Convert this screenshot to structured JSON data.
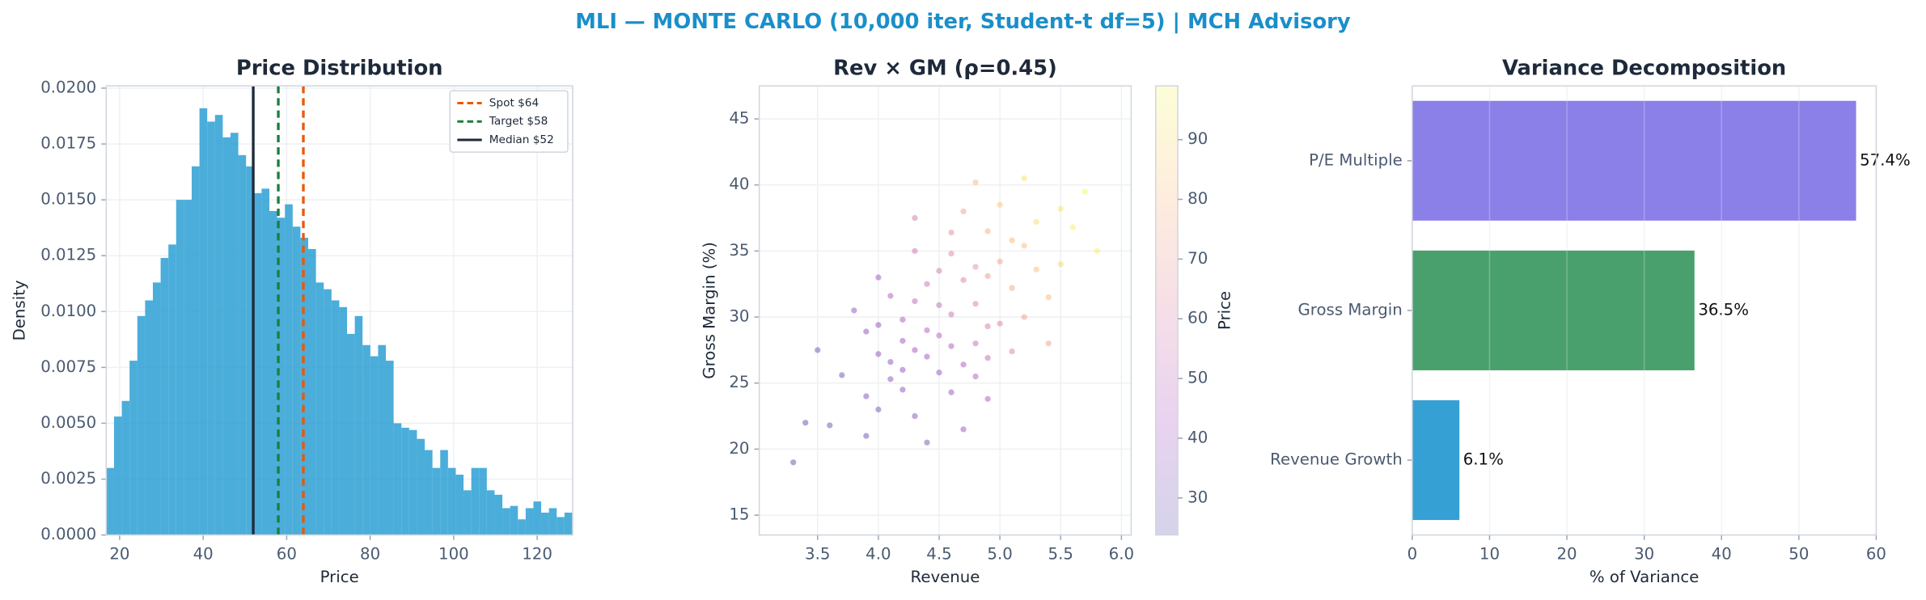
{
  "suptitle": "MLI — MONTE CARLO (10,000 iter, Student-t df=5) | MCH Advisory",
  "chart_data": [
    {
      "type": "histogram",
      "title": "Price Distribution",
      "xlabel": "Price",
      "ylabel": "Density",
      "bins": [
        16.8,
        18.66,
        20.52,
        22.38,
        24.24,
        26.1,
        27.96,
        29.82,
        31.68,
        33.54,
        35.4,
        37.26,
        39.12,
        40.98,
        42.84,
        44.7,
        46.56,
        48.42,
        50.28,
        52.14,
        54,
        55.86,
        57.72,
        59.58,
        61.44,
        63.3,
        65.16,
        67.02,
        68.88,
        70.74,
        72.6,
        74.46,
        76.32,
        78.18,
        80.04,
        81.9,
        83.76,
        85.62,
        87.48,
        89.34,
        91.2,
        93.06,
        94.92,
        96.78,
        98.64,
        100.5,
        102.36,
        104.22,
        106.08,
        107.94,
        109.8,
        111.66,
        113.52,
        115.38,
        117.24,
        119.1,
        120.96,
        122.82,
        124.68,
        126.54,
        128.4
      ],
      "values": [
        0.003,
        0.0053,
        0.006,
        0.0078,
        0.0098,
        0.0105,
        0.0113,
        0.0124,
        0.013,
        0.015,
        0.015,
        0.0165,
        0.0191,
        0.0185,
        0.0188,
        0.0178,
        0.018,
        0.017,
        0.0165,
        0.0153,
        0.0155,
        0.0145,
        0.0142,
        0.0148,
        0.0138,
        0.0133,
        0.0128,
        0.0113,
        0.011,
        0.0105,
        0.0102,
        0.009,
        0.0098,
        0.0085,
        0.008,
        0.0085,
        0.0078,
        0.005,
        0.0048,
        0.0047,
        0.0043,
        0.0038,
        0.003,
        0.0038,
        0.003,
        0.0027,
        0.002,
        0.003,
        0.003,
        0.002,
        0.0018,
        0.0012,
        0.0013,
        0.0007,
        0.0012,
        0.0015,
        0.001,
        0.0012,
        0.0008,
        0.001
      ],
      "color": "#2c9fd4",
      "xlim": [
        16.8,
        128.5
      ],
      "ylim": [
        0,
        0.0201
      ],
      "xticks": [
        20,
        40,
        60,
        80,
        100,
        120
      ],
      "yticks": [
        {
          "value": 0,
          "label": "0.0000"
        },
        {
          "value": 0.0025,
          "label": "0.0025"
        },
        {
          "value": 0.005,
          "label": "0.0050"
        },
        {
          "value": 0.0075,
          "label": "0.0075"
        },
        {
          "value": 0.01,
          "label": "0.0100"
        },
        {
          "value": 0.0125,
          "label": "0.0125"
        },
        {
          "value": 0.015,
          "label": "0.0150"
        },
        {
          "value": 0.0175,
          "label": "0.0175"
        },
        {
          "value": 0.02,
          "label": "0.0200"
        }
      ],
      "grid": true,
      "legend": "upper right",
      "reference_lines": [
        {
          "name": "Spot $64",
          "value": 64,
          "color": "#e8590c",
          "dashed": true
        },
        {
          "name": "Target $58",
          "value": 58,
          "color": "#1a7f3c",
          "dashed": true
        },
        {
          "name": "Median $52",
          "value": 52,
          "color": "#1e2a3a",
          "dashed": false
        }
      ]
    },
    {
      "type": "scatter",
      "title": "Rev × GM (ρ=0.45)",
      "xlabel": "Revenue",
      "ylabel": "Gross Margin (%)",
      "x": [
        4.3,
        4.6,
        4.9,
        5.2,
        4.1,
        4.5,
        4.8,
        5.0,
        4.4,
        3.9,
        4.2,
        4.7,
        5.3,
        5.5,
        4.0,
        4.6,
        4.3,
        5.1,
        4.8,
        3.7,
        4.5,
        4.2,
        4.9,
        5.4,
        3.6,
        4.4,
        4.7,
        5.0,
        4.1,
        4.6,
        5.2,
        3.9,
        4.3,
        4.8,
        5.6,
        4.0,
        4.5,
        4.9,
        4.2,
        5.1,
        3.4,
        4.7,
        5.3,
        4.4,
        4.6,
        3.8,
        5.0,
        4.3,
        5.7,
        4.1,
        4.8,
        4.5,
        5.2,
        3.3,
        4.0,
        4.9,
        4.4,
        5.4,
        4.6,
        4.2,
        5.8,
        3.5,
        4.7,
        5.1,
        4.3,
        4.9,
        4.0,
        5.5,
        3.9,
        4.8
      ],
      "values": [
        27.5,
        30.2,
        33.1,
        35.4,
        25.3,
        28.6,
        31.0,
        29.5,
        32.5,
        24.0,
        29.8,
        26.4,
        37.2,
        34.0,
        27.2,
        34.8,
        22.5,
        32.2,
        28.0,
        25.6,
        30.9,
        26.0,
        36.5,
        31.5,
        21.8,
        27.0,
        32.8,
        38.5,
        31.6,
        24.3,
        30.0,
        28.9,
        35.0,
        25.5,
        36.8,
        23.0,
        33.5,
        29.3,
        28.2,
        27.4,
        22.0,
        38.0,
        33.6,
        20.5,
        27.8,
        30.5,
        34.2,
        31.2,
        39.5,
        26.6,
        33.8,
        25.8,
        40.5,
        19.0,
        33.0,
        26.9,
        29.0,
        28.0,
        36.4,
        24.5,
        35.0,
        27.5,
        21.5,
        35.8,
        37.5,
        23.8,
        29.4,
        38.2,
        21.0,
        40.2
      ],
      "color_values": [
        42,
        55,
        70,
        82,
        35,
        48,
        60,
        62,
        55,
        32,
        44,
        45,
        90,
        88,
        36,
        64,
        34,
        75,
        52,
        30,
        52,
        38,
        78,
        80,
        28,
        42,
        62,
        85,
        46,
        40,
        72,
        37,
        56,
        46,
        95,
        31,
        58,
        58,
        40,
        62,
        26,
        72,
        83,
        32,
        46,
        36,
        74,
        50,
        98,
        37,
        68,
        41,
        92,
        25,
        42,
        52,
        47,
        73,
        66,
        35,
        96,
        30,
        40,
        80,
        58,
        44,
        39,
        94,
        29,
        80
      ],
      "colormap": [
        "#0d0887",
        "#7e03a8",
        "#cc4778",
        "#f89540",
        "#f0f921"
      ],
      "alpha": 0.35,
      "xlim": [
        3.02,
        6.08
      ],
      "ylim": [
        13.5,
        47.5
      ],
      "xticks": [
        3.5,
        {
          "value": 4,
          "label": "4.0"
        },
        4.5,
        {
          "value": 5,
          "label": "5.0"
        },
        5.5,
        {
          "value": 6,
          "label": "6.0"
        }
      ],
      "yticks": [
        15,
        20,
        25,
        30,
        35,
        40,
        45
      ],
      "grid": true,
      "clim": [
        23.8,
        99
      ],
      "cticks": [
        30,
        40,
        50,
        60,
        70,
        80,
        90
      ],
      "clabel": "Price"
    },
    {
      "type": "barh",
      "title": "Variance Decomposition",
      "xlabel": "% of Variance",
      "categories": [
        "P/E Multiple",
        "Gross Margin",
        "Revenue Growth"
      ],
      "values": [
        57.4,
        36.5,
        6.1
      ],
      "value_labels": [
        "57.4%",
        "36.5%",
        "6.1%"
      ],
      "colors": [
        "#8b7fe8",
        "#4aa06d",
        "#35a0d4"
      ],
      "xlim": [
        0,
        60
      ],
      "xticks": [
        0,
        10,
        20,
        30,
        40,
        50,
        60
      ],
      "grid": true
    }
  ]
}
